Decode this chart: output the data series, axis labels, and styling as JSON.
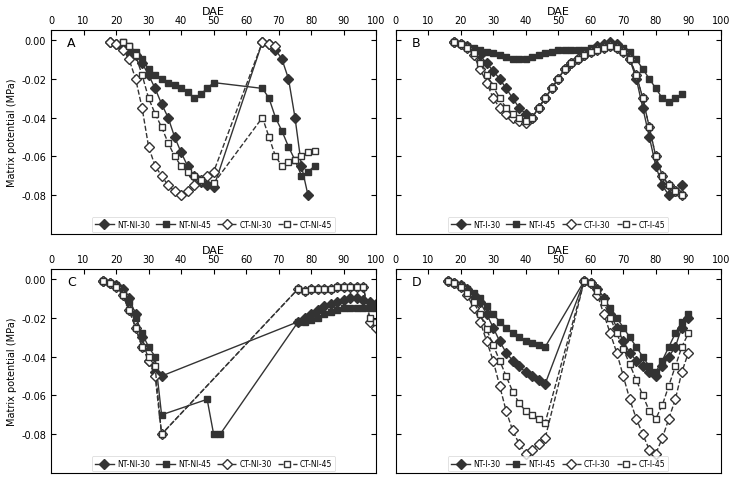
{
  "panel_A": {
    "label": "A",
    "series": {
      "NT-NI-30": {
        "x": [
          18,
          20,
          22,
          24,
          26,
          28,
          30,
          32,
          34,
          36,
          38,
          40,
          42,
          44,
          46,
          48,
          50,
          65,
          67,
          69,
          71,
          73,
          75,
          77,
          79
        ],
        "y": [
          -0.001,
          -0.002,
          -0.004,
          -0.006,
          -0.008,
          -0.012,
          -0.018,
          -0.025,
          -0.033,
          -0.04,
          -0.05,
          -0.058,
          -0.065,
          -0.07,
          -0.073,
          -0.075,
          -0.076,
          -0.001,
          -0.002,
          -0.005,
          -0.01,
          -0.02,
          -0.04,
          -0.065,
          -0.08
        ],
        "marker": "D",
        "filled": true,
        "linestyle": "-"
      },
      "NT-NI-45": {
        "x": [
          22,
          24,
          26,
          28,
          30,
          32,
          34,
          36,
          38,
          40,
          42,
          44,
          46,
          48,
          50,
          65,
          67,
          69,
          71,
          73,
          75,
          77,
          79,
          81
        ],
        "y": [
          -0.001,
          -0.003,
          -0.006,
          -0.01,
          -0.015,
          -0.018,
          -0.02,
          -0.022,
          -0.023,
          -0.025,
          -0.027,
          -0.03,
          -0.028,
          -0.025,
          -0.022,
          -0.025,
          -0.03,
          -0.04,
          -0.047,
          -0.055,
          -0.062,
          -0.07,
          -0.068,
          -0.065
        ],
        "marker": "s",
        "filled": true,
        "linestyle": "-"
      },
      "CT-NI-30": {
        "x": [
          18,
          20,
          22,
          24,
          26,
          28,
          30,
          32,
          34,
          36,
          38,
          40,
          42,
          44,
          46,
          48,
          50,
          65,
          67,
          69
        ],
        "y": [
          -0.001,
          -0.002,
          -0.005,
          -0.01,
          -0.02,
          -0.035,
          -0.055,
          -0.065,
          -0.07,
          -0.075,
          -0.078,
          -0.08,
          -0.078,
          -0.075,
          -0.072,
          -0.07,
          -0.068,
          -0.001,
          -0.002,
          -0.003
        ],
        "marker": "D",
        "filled": false,
        "linestyle": "--"
      },
      "CT-NI-45": {
        "x": [
          22,
          24,
          26,
          28,
          30,
          32,
          34,
          36,
          38,
          40,
          42,
          44,
          46,
          50,
          65,
          67,
          69,
          71,
          73,
          75,
          77,
          79,
          81
        ],
        "y": [
          -0.001,
          -0.003,
          -0.008,
          -0.018,
          -0.03,
          -0.038,
          -0.045,
          -0.053,
          -0.06,
          -0.065,
          -0.068,
          -0.07,
          -0.072,
          -0.074,
          -0.04,
          -0.05,
          -0.06,
          -0.065,
          -0.063,
          -0.062,
          -0.06,
          -0.058,
          -0.057
        ],
        "marker": "s",
        "filled": false,
        "linestyle": "--"
      }
    }
  },
  "panel_B": {
    "label": "B",
    "series": {
      "NT-I-30": {
        "x": [
          18,
          20,
          22,
          24,
          26,
          28,
          30,
          32,
          34,
          36,
          38,
          40,
          42,
          44,
          46,
          48,
          50,
          52,
          54,
          56,
          58,
          60,
          62,
          64,
          66,
          68,
          70,
          72,
          74,
          76,
          78,
          80,
          82,
          84,
          86,
          88
        ],
        "y": [
          -0.001,
          -0.002,
          -0.003,
          -0.005,
          -0.008,
          -0.012,
          -0.016,
          -0.02,
          -0.025,
          -0.03,
          -0.035,
          -0.038,
          -0.04,
          -0.035,
          -0.03,
          -0.025,
          -0.02,
          -0.015,
          -0.012,
          -0.01,
          -0.008,
          -0.005,
          -0.003,
          -0.002,
          -0.001,
          -0.002,
          -0.005,
          -0.01,
          -0.02,
          -0.035,
          -0.05,
          -0.065,
          -0.075,
          -0.08,
          -0.078,
          -0.075
        ],
        "marker": "D",
        "filled": true,
        "linestyle": "-"
      },
      "NT-I-45": {
        "x": [
          18,
          20,
          22,
          24,
          26,
          28,
          30,
          32,
          34,
          36,
          38,
          40,
          42,
          44,
          46,
          48,
          50,
          52,
          54,
          56,
          58,
          60,
          62,
          64,
          66,
          68,
          70,
          72,
          74,
          76,
          78,
          80,
          82,
          84,
          86,
          88
        ],
        "y": [
          -0.001,
          -0.002,
          -0.003,
          -0.004,
          -0.005,
          -0.006,
          -0.007,
          -0.008,
          -0.009,
          -0.01,
          -0.01,
          -0.01,
          -0.009,
          -0.008,
          -0.007,
          -0.006,
          -0.005,
          -0.005,
          -0.005,
          -0.005,
          -0.005,
          -0.004,
          -0.004,
          -0.003,
          -0.003,
          -0.003,
          -0.004,
          -0.006,
          -0.01,
          -0.015,
          -0.02,
          -0.025,
          -0.03,
          -0.032,
          -0.03,
          -0.028
        ],
        "marker": "s",
        "filled": true,
        "linestyle": "-"
      },
      "CT-I-30": {
        "x": [
          18,
          20,
          22,
          24,
          26,
          28,
          30,
          32,
          34,
          36,
          38,
          40,
          42,
          44,
          46,
          48,
          50,
          52,
          54,
          56,
          58,
          60,
          62,
          64,
          66,
          68,
          70,
          72,
          74,
          76,
          78,
          80,
          82,
          84,
          86,
          88
        ],
        "y": [
          -0.001,
          -0.002,
          -0.004,
          -0.008,
          -0.015,
          -0.022,
          -0.03,
          -0.035,
          -0.038,
          -0.04,
          -0.042,
          -0.043,
          -0.04,
          -0.035,
          -0.03,
          -0.025,
          -0.02,
          -0.015,
          -0.012,
          -0.01,
          -0.008,
          -0.006,
          -0.005,
          -0.004,
          -0.003,
          -0.004,
          -0.006,
          -0.01,
          -0.018,
          -0.03,
          -0.045,
          -0.06,
          -0.07,
          -0.075,
          -0.078,
          -0.08
        ],
        "marker": "D",
        "filled": false,
        "linestyle": "--"
      },
      "CT-I-45": {
        "x": [
          18,
          20,
          22,
          24,
          26,
          28,
          30,
          32,
          34,
          36,
          38,
          40,
          42,
          44,
          46,
          48,
          50,
          52,
          54,
          56,
          58,
          60,
          62,
          64,
          66,
          68,
          70,
          72,
          74,
          76,
          78,
          80,
          82,
          84,
          86,
          88
        ],
        "y": [
          -0.001,
          -0.002,
          -0.004,
          -0.007,
          -0.012,
          -0.018,
          -0.024,
          -0.03,
          -0.035,
          -0.038,
          -0.04,
          -0.042,
          -0.04,
          -0.035,
          -0.03,
          -0.025,
          -0.02,
          -0.015,
          -0.012,
          -0.01,
          -0.008,
          -0.006,
          -0.005,
          -0.004,
          -0.003,
          -0.004,
          -0.006,
          -0.01,
          -0.018,
          -0.03,
          -0.045,
          -0.06,
          -0.07,
          -0.075,
          -0.078,
          -0.08
        ],
        "marker": "s",
        "filled": false,
        "linestyle": "--"
      }
    }
  },
  "panel_C": {
    "label": "C",
    "series": {
      "NT-NI-30": {
        "x": [
          16,
          18,
          20,
          22,
          24,
          26,
          28,
          30,
          32,
          34,
          76,
          78,
          80,
          82,
          84,
          86,
          88,
          90,
          92,
          94,
          96,
          98,
          100
        ],
        "y": [
          -0.001,
          -0.002,
          -0.003,
          -0.005,
          -0.01,
          -0.018,
          -0.03,
          -0.042,
          -0.048,
          -0.05,
          -0.022,
          -0.02,
          -0.018,
          -0.016,
          -0.014,
          -0.013,
          -0.012,
          -0.011,
          -0.01,
          -0.01,
          -0.011,
          -0.012,
          -0.013
        ],
        "marker": "D",
        "filled": true,
        "linestyle": "-"
      },
      "NT-NI-45": {
        "x": [
          16,
          18,
          20,
          22,
          24,
          26,
          28,
          30,
          32,
          34,
          48,
          50,
          52,
          76,
          78,
          80,
          82,
          84,
          86,
          88,
          90,
          92,
          94,
          96,
          98,
          100
        ],
        "y": [
          -0.001,
          -0.002,
          -0.003,
          -0.006,
          -0.012,
          -0.02,
          -0.028,
          -0.035,
          -0.04,
          -0.07,
          -0.062,
          -0.08,
          -0.08,
          -0.022,
          -0.022,
          -0.021,
          -0.02,
          -0.018,
          -0.017,
          -0.016,
          -0.015,
          -0.015,
          -0.015,
          -0.015,
          -0.015,
          -0.015
        ],
        "marker": "s",
        "filled": true,
        "linestyle": "-"
      },
      "CT-NI-30": {
        "x": [
          16,
          18,
          20,
          22,
          24,
          26,
          28,
          30,
          32,
          34,
          76,
          78,
          80,
          82,
          84,
          86,
          88,
          90,
          92,
          94,
          96,
          98,
          100
        ],
        "y": [
          -0.001,
          -0.002,
          -0.004,
          -0.008,
          -0.016,
          -0.025,
          -0.035,
          -0.042,
          -0.05,
          -0.08,
          -0.005,
          -0.006,
          -0.005,
          -0.005,
          -0.005,
          -0.005,
          -0.004,
          -0.004,
          -0.004,
          -0.004,
          -0.004,
          -0.022,
          -0.025
        ],
        "marker": "D",
        "filled": false,
        "linestyle": "--"
      },
      "CT-NI-45": {
        "x": [
          16,
          18,
          20,
          22,
          24,
          26,
          28,
          30,
          32,
          34,
          76,
          78,
          80,
          82,
          84,
          86,
          88,
          90,
          92,
          94,
          96,
          98,
          100
        ],
        "y": [
          -0.001,
          -0.002,
          -0.004,
          -0.008,
          -0.016,
          -0.025,
          -0.035,
          -0.04,
          -0.045,
          -0.08,
          -0.005,
          -0.006,
          -0.005,
          -0.005,
          -0.005,
          -0.005,
          -0.004,
          -0.004,
          -0.004,
          -0.004,
          -0.004,
          -0.02,
          -0.022
        ],
        "marker": "s",
        "filled": false,
        "linestyle": "--"
      }
    }
  },
  "panel_D": {
    "label": "D",
    "series": {
      "NT-I-30": {
        "x": [
          16,
          18,
          20,
          22,
          24,
          26,
          28,
          30,
          32,
          34,
          36,
          38,
          40,
          42,
          44,
          46,
          58,
          60,
          62,
          64,
          66,
          68,
          70,
          72,
          74,
          76,
          78,
          80,
          82,
          84,
          86,
          88,
          90
        ],
        "y": [
          -0.001,
          -0.002,
          -0.003,
          -0.005,
          -0.008,
          -0.012,
          -0.018,
          -0.025,
          -0.032,
          -0.038,
          -0.042,
          -0.045,
          -0.048,
          -0.05,
          -0.052,
          -0.054,
          -0.001,
          -0.002,
          -0.005,
          -0.01,
          -0.018,
          -0.025,
          -0.032,
          -0.038,
          -0.042,
          -0.045,
          -0.048,
          -0.05,
          -0.045,
          -0.04,
          -0.035,
          -0.025,
          -0.02
        ],
        "marker": "D",
        "filled": true,
        "linestyle": "-"
      },
      "NT-I-45": {
        "x": [
          16,
          18,
          20,
          22,
          24,
          26,
          28,
          30,
          32,
          34,
          36,
          38,
          40,
          42,
          44,
          46,
          58,
          60,
          62,
          64,
          66,
          68,
          70,
          72,
          74,
          76,
          78,
          80,
          82,
          84,
          86,
          88,
          90
        ],
        "y": [
          -0.001,
          -0.002,
          -0.003,
          -0.005,
          -0.007,
          -0.01,
          -0.014,
          -0.018,
          -0.022,
          -0.025,
          -0.028,
          -0.03,
          -0.032,
          -0.033,
          -0.034,
          -0.035,
          -0.001,
          -0.002,
          -0.005,
          -0.01,
          -0.015,
          -0.02,
          -0.025,
          -0.03,
          -0.035,
          -0.04,
          -0.045,
          -0.048,
          -0.042,
          -0.035,
          -0.028,
          -0.022,
          -0.018
        ],
        "marker": "s",
        "filled": true,
        "linestyle": "-"
      },
      "CT-I-30": {
        "x": [
          16,
          18,
          20,
          22,
          24,
          26,
          28,
          30,
          32,
          34,
          36,
          38,
          40,
          42,
          44,
          46,
          58,
          60,
          62,
          64,
          66,
          68,
          70,
          72,
          74,
          76,
          78,
          80,
          82,
          84,
          86,
          88,
          90
        ],
        "y": [
          -0.001,
          -0.002,
          -0.004,
          -0.008,
          -0.015,
          -0.022,
          -0.032,
          -0.042,
          -0.055,
          -0.068,
          -0.078,
          -0.085,
          -0.09,
          -0.088,
          -0.085,
          -0.082,
          -0.001,
          -0.002,
          -0.008,
          -0.018,
          -0.028,
          -0.038,
          -0.05,
          -0.062,
          -0.072,
          -0.08,
          -0.088,
          -0.09,
          -0.082,
          -0.072,
          -0.062,
          -0.048,
          -0.038
        ],
        "marker": "D",
        "filled": false,
        "linestyle": "--"
      },
      "CT-I-45": {
        "x": [
          16,
          18,
          20,
          22,
          24,
          26,
          28,
          30,
          32,
          34,
          36,
          38,
          40,
          42,
          44,
          46,
          58,
          60,
          62,
          64,
          66,
          68,
          70,
          72,
          74,
          76,
          78,
          80,
          82,
          84,
          86,
          88,
          90
        ],
        "y": [
          -0.001,
          -0.002,
          -0.004,
          -0.007,
          -0.012,
          -0.018,
          -0.026,
          -0.034,
          -0.042,
          -0.05,
          -0.058,
          -0.064,
          -0.068,
          -0.07,
          -0.072,
          -0.074,
          -0.001,
          -0.002,
          -0.006,
          -0.012,
          -0.02,
          -0.028,
          -0.036,
          -0.044,
          -0.052,
          -0.06,
          -0.068,
          -0.072,
          -0.065,
          -0.055,
          -0.045,
          -0.035,
          -0.028
        ],
        "marker": "s",
        "filled": false,
        "linestyle": "--"
      }
    }
  },
  "xlim": [
    0,
    100
  ],
  "ylim": [
    -0.1,
    0.005
  ],
  "yticks": [
    0.0,
    -0.02,
    -0.04,
    -0.06,
    -0.08
  ],
  "xticks": [
    0,
    10,
    20,
    30,
    40,
    50,
    60,
    70,
    80,
    90,
    100
  ],
  "xlabel": "DAE",
  "ylabel": "Matrix potential (MPa)",
  "color": "#333333",
  "markersize": 5,
  "linewidth": 1.0,
  "legend_NI": [
    "NT-NI-30",
    "NT-NI-45",
    "CT-NI-30",
    "CT-NI-45"
  ],
  "legend_I": [
    "NT-I-30",
    "NT-I-45",
    "CT-I-30",
    "CT-I-45"
  ]
}
